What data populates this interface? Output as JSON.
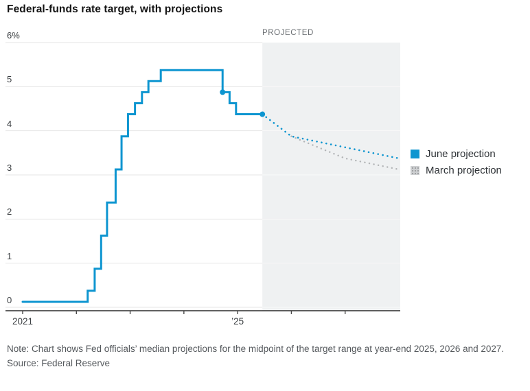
{
  "title": "Federal-funds rate target, with projections",
  "projected_label": "PROJECTED",
  "note": "Note: Chart shows Fed officials’ median projections for the midpoint of the target range at year-end 2025, 2026 and 2027.",
  "source": "Source: Federal Reserve",
  "legend": {
    "items": [
      {
        "label": "June projection",
        "color": "#0d95d0",
        "swatch_style": "solid"
      },
      {
        "label": "March projection",
        "color": "#cdcfd1",
        "swatch_style": "dotted"
      }
    ]
  },
  "colors": {
    "actual_line": "#0d95d0",
    "june_projection": "#0d95d0",
    "march_projection": "#b3b5b7",
    "projected_band": "#eff1f2",
    "gridline": "#e4e4e4",
    "axis": "#2b2b2b",
    "tick": "#4a4a4a"
  },
  "chart_data": {
    "type": "line",
    "title": "Federal-funds rate target, with projections",
    "xlabel": "",
    "ylabel": "percent",
    "ylim": [
      0,
      6
    ],
    "xlim": [
      2021,
      2028
    ],
    "grid": true,
    "legend_position": "right",
    "y_ticks": [
      {
        "value": 6,
        "label": "6%"
      },
      {
        "value": 5,
        "label": "5"
      },
      {
        "value": 4,
        "label": "4"
      },
      {
        "value": 3,
        "label": "3"
      },
      {
        "value": 2,
        "label": "2"
      },
      {
        "value": 1,
        "label": "1"
      },
      {
        "value": 0,
        "label": "0"
      }
    ],
    "x_tick_years": [
      2021,
      2022,
      2023,
      2024,
      2025,
      2026,
      2027
    ],
    "x_tick_labels": [
      {
        "x": 2021,
        "label": "2021"
      },
      {
        "x": 2025,
        "label": "’25"
      }
    ],
    "projected_region": {
      "start_x": 2025.46,
      "end_x": 2028,
      "label": "PROJECTED"
    },
    "series": [
      {
        "name": "Federal-funds rate target (midpoint, actual)",
        "style": "step-solid",
        "start": [
          2021.0,
          0.125
        ],
        "changes": [
          [
            2022.21,
            0.375
          ],
          [
            2022.34,
            0.875
          ],
          [
            2022.46,
            1.625
          ],
          [
            2022.57,
            2.375
          ],
          [
            2022.73,
            3.125
          ],
          [
            2022.84,
            3.875
          ],
          [
            2022.96,
            4.375
          ],
          [
            2023.09,
            4.625
          ],
          [
            2023.22,
            4.875
          ],
          [
            2023.34,
            5.125
          ],
          [
            2023.57,
            5.375
          ],
          [
            2024.72,
            4.875
          ],
          [
            2024.85,
            4.625
          ],
          [
            2024.97,
            4.375
          ]
        ],
        "end_x": 2025.46
      },
      {
        "name": "June projection",
        "style": "dotted",
        "points": [
          [
            2025.46,
            4.375
          ],
          [
            2026.0,
            3.875
          ],
          [
            2027.0,
            3.625
          ],
          [
            2028.0,
            3.375
          ]
        ]
      },
      {
        "name": "March projection",
        "style": "dotted",
        "points": [
          [
            2026.0,
            3.875
          ],
          [
            2027.0,
            3.375
          ],
          [
            2028.0,
            3.125
          ]
        ]
      }
    ],
    "markers": [
      {
        "x": 2024.72,
        "y": 4.875
      },
      {
        "x": 2025.46,
        "y": 4.375
      }
    ],
    "projection_values": {
      "june": {
        "2025": 3.875,
        "2026": 3.625,
        "2027": 3.375
      },
      "march": {
        "2025": 3.875,
        "2026": 3.375,
        "2027": 3.125
      }
    }
  }
}
